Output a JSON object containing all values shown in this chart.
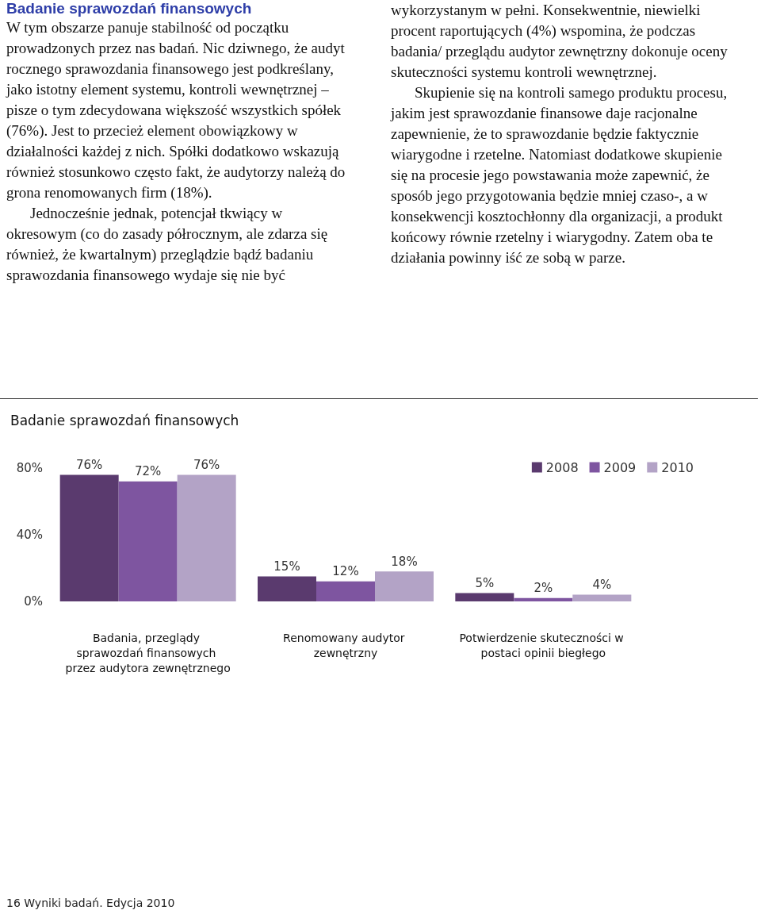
{
  "chart_data": {
    "type": "bar",
    "title": "Badanie sprawozdań finansowych",
    "categories": [
      "Badania, przeglądy sprawozdań finansowych przez audytora zewnętrznego",
      "Renomowany audytor zewnętrzny",
      "Potwierdzenie skuteczności w postaci opinii biegłego"
    ],
    "series": [
      {
        "name": "2008",
        "color": "#5a3a6e",
        "values": [
          76,
          15,
          5
        ],
        "value_labels": [
          "76%",
          "15%",
          "5%"
        ]
      },
      {
        "name": "2009",
        "color": "#7e55a0",
        "values": [
          72,
          12,
          2
        ],
        "value_labels": [
          "72%",
          "12%",
          "2%"
        ]
      },
      {
        "name": "2010",
        "color": "#b3a3c6",
        "values": [
          76,
          18,
          4
        ],
        "value_labels": [
          "76%",
          "18%",
          "4%"
        ]
      }
    ],
    "ylim": [
      0,
      80
    ],
    "yticks": [
      {
        "value": 0,
        "label": "0%"
      },
      {
        "value": 40,
        "label": "40%"
      },
      {
        "value": 80,
        "label": "80%"
      }
    ],
    "grid": false,
    "legend": "top right",
    "annotations": [
      "Badanie sprawozdań finansowych",
      "W tym obszarze panuje stabilność od początku prowadzonych przez nas badań. Nic dziwnego, że audyt rocznego sprawozdania finansowego jest podkreślany, jako istotny element systemu, kontroli wewnętrznej – pisze o tym zdecydowana większość wszystkich spółek (76%). Jest to przecież element obowiązkowy w działalności każdej z nich. Spółki dodatkowo wskazują również stosunkowo często fakt, że audytorzy należą do grona renomowanych firm (18%).",
      "Jednocześnie jednak, potencjał tkwiący w okresowym (co do zasady półrocznym, ale zdarza się również, że kwartalnym) przeglądzie bądź badaniu sprawozdania finansowego wydaje się nie być wykorzystanym w pełni. Konsekwentnie, niewielki procent raportujących (4%) wspomina, że podczas badania/ przeglądu audytor zewnętrzny dokonuje oceny skuteczności systemu kontroli wewnętrznej.",
      "Skupienie się na kontroli samego produktu procesu, jakim jest sprawozdanie finansowe daje racjonalne zapewnienie, że to sprawozdanie będzie faktycznie wiarygodne i rzetelne. Natomiast dodatkowe skupienie się na procesie jego powstawania może zapewnić, że sposób jego przygotowania będzie mniej czaso-, a w konsekwencji kosztochłonny dla organizacji, a produkt końcowy równie rzetelny i wiarygodny. Zatem oba te działania powinny iść ze sobą w parze.",
      "16 Wyniki badań. Edycja 2010"
    ]
  }
}
